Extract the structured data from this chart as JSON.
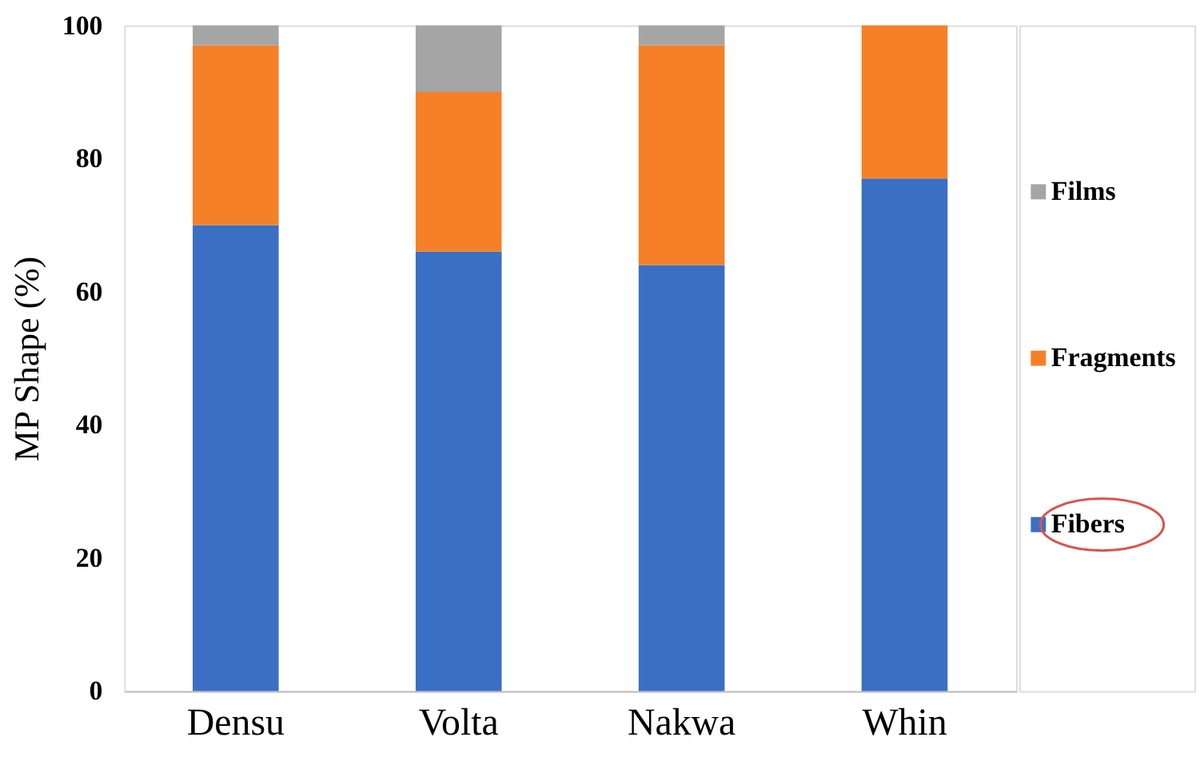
{
  "chart_data": {
    "type": "bar",
    "stacked": true,
    "ylabel": "MP Shape (%)",
    "categories": [
      "Densu",
      "Volta",
      "Nakwa",
      "Whin"
    ],
    "series": [
      {
        "name": "Fibers",
        "color": "#3a6fc4",
        "values": [
          70,
          66,
          64,
          77
        ]
      },
      {
        "name": "Fragments",
        "color": "#f58027",
        "values": [
          27,
          24,
          33,
          23
        ]
      },
      {
        "name": "Films",
        "color": "#a5a5a5",
        "values": [
          3,
          10,
          3,
          0
        ]
      }
    ],
    "ylim": [
      0,
      100
    ],
    "yticks": [
      0,
      20,
      40,
      60,
      80,
      100
    ],
    "grid": false,
    "legend": "right"
  }
}
